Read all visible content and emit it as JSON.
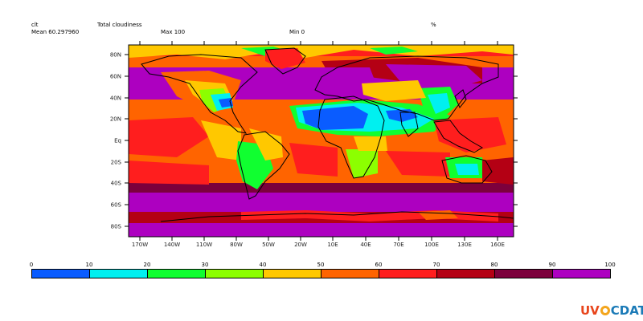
{
  "header": {
    "variable": "clt",
    "title": "Total cloudiness",
    "units": "%",
    "mean": "Mean 60.297960",
    "max": "Max 100",
    "min": "Min 0"
  },
  "map": {
    "lat_labels": [
      "80N",
      "60N",
      "40N",
      "20N",
      "Eq",
      "20S",
      "40S",
      "60S",
      "80S"
    ],
    "lon_labels": [
      "170W",
      "140W",
      "110W",
      "80W",
      "50W",
      "20W",
      "10E",
      "40E",
      "70E",
      "100E",
      "130E",
      "160E"
    ]
  },
  "colorbar": {
    "labels": [
      "0",
      "10",
      "20",
      "30",
      "40",
      "50",
      "60",
      "70",
      "80",
      "90",
      "100"
    ],
    "colors": [
      "#0a5cff",
      "#00f0f0",
      "#10ff30",
      "#8cff00",
      "#ffc800",
      "#ff6400",
      "#ff1e1e",
      "#b40014",
      "#7c003c",
      "#ad00c0"
    ]
  },
  "logo": {
    "left": "UV",
    "right": "CDAT"
  }
}
